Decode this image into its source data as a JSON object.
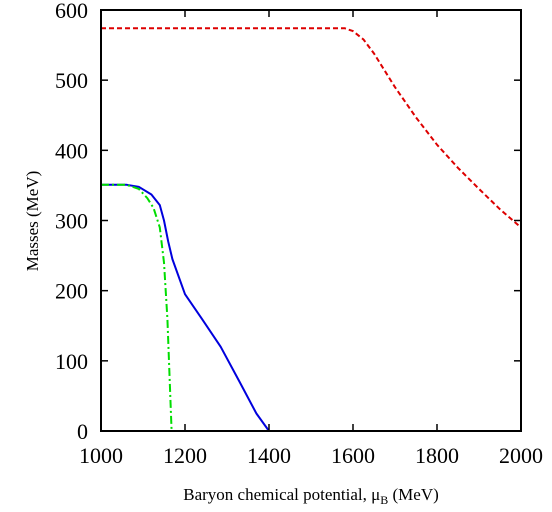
{
  "chart_data": {
    "type": "line",
    "title": "",
    "xlabel": "Baryon chemical potential, μ",
    "xlabel_sub": "B",
    "xlabel_unit": " (MeV)",
    "ylabel": "Masses (MeV)",
    "xlim": [
      1000,
      2000
    ],
    "ylim": [
      0,
      600
    ],
    "xticks": [
      1000,
      1200,
      1400,
      1600,
      1800,
      2000
    ],
    "yticks": [
      0,
      100,
      200,
      300,
      400,
      500,
      600
    ],
    "grid": false,
    "legend": "none",
    "series": [
      {
        "color": "#dd0000",
        "dash": "dashed",
        "x": [
          1000,
          1580,
          1600,
          1625,
          1650,
          1700,
          1750,
          1800,
          1850,
          1900,
          1950,
          2000
        ],
        "y": [
          574,
          574,
          570,
          558,
          538,
          490,
          447,
          408,
          375,
          345,
          316,
          290
        ]
      },
      {
        "color": "#0000dd",
        "dash": "solid",
        "x": [
          1000,
          1060,
          1090,
          1120,
          1140,
          1150,
          1160,
          1170,
          1200,
          1240,
          1285,
          1330,
          1370,
          1400,
          2000
        ],
        "y": [
          351,
          351,
          348,
          337,
          322,
          300,
          270,
          245,
          195,
          160,
          120,
          70,
          25,
          0,
          0
        ]
      },
      {
        "color": "#00dd00",
        "dash": "dash-dot",
        "x": [
          1000,
          1060,
          1090,
          1110,
          1125,
          1140,
          1150,
          1158,
          1163,
          1168,
          2000
        ],
        "y": [
          351,
          351,
          345,
          332,
          318,
          290,
          240,
          160,
          80,
          0,
          0
        ]
      }
    ]
  }
}
